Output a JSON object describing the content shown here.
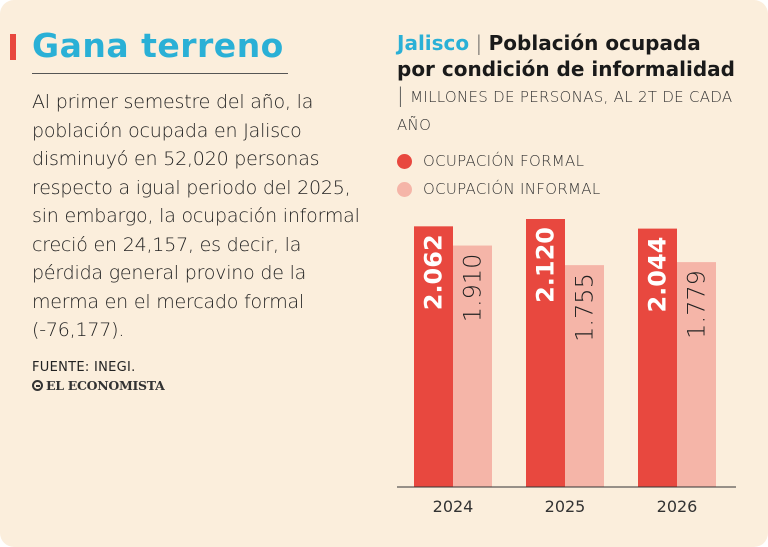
{
  "headline": "Gana terreno",
  "body_text": "Al primer semestre del año, la población ocupada en Jalisco disminuyó en 52,020 personas respecto a igual periodo del 2025, sin embargo, la ocupación informal creció en 24,157, es decir, la pérdida general provino de la merma en el mercado formal (-76,177).",
  "source": "FUENTE:  INEGI.",
  "logo": "EL ECONOMISTA",
  "colors": {
    "background": "#fbeedc",
    "accent_blue": "#2ab0d6",
    "formal": "#e8483f",
    "informal": "#f5b5a8"
  },
  "chart_data": {
    "type": "bar",
    "place": "Jalisco",
    "separator": "|",
    "title": "Población ocupada por condición de informalidad",
    "units": "MILLONES DE PERSONAS, AL 2T DE CADA AÑO",
    "categories": [
      "2024",
      "2025",
      "2026"
    ],
    "series": [
      {
        "name": "OCUPACIÓN FORMAL",
        "color": "#e8483f",
        "values": [
          2.062,
          2.12,
          2.044
        ],
        "labels": [
          "2.062",
          "2.120",
          "2.044"
        ]
      },
      {
        "name": "OCUPACIÓN INFORMAL",
        "color": "#f5b5a8",
        "values": [
          1.91,
          1.755,
          1.779
        ],
        "labels": [
          "1.910",
          "1.755",
          "1.779"
        ]
      }
    ],
    "ylim": [
      0,
      2.12
    ],
    "grid": false,
    "legend": "top-left"
  }
}
